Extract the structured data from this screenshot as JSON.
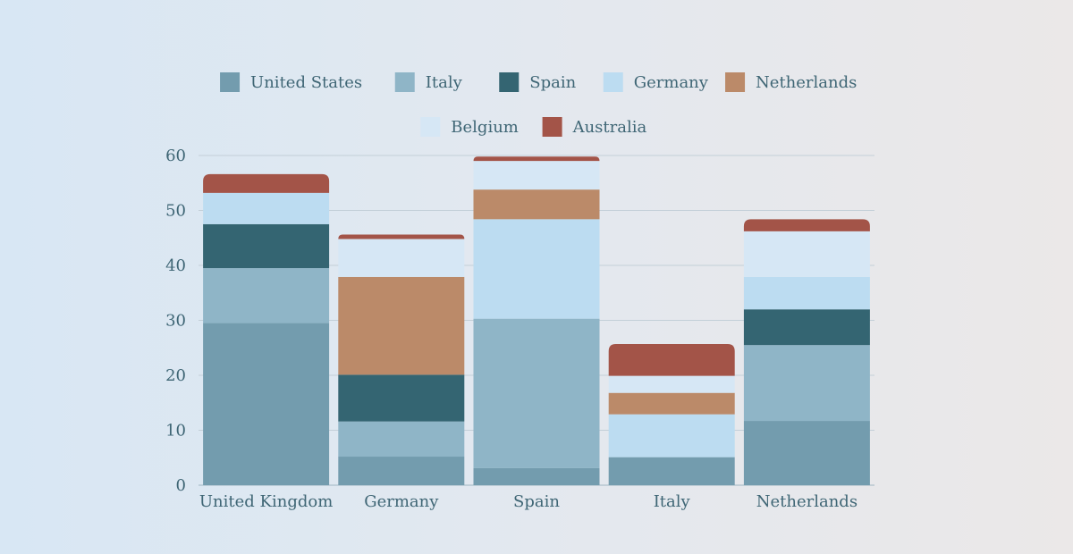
{
  "chart_data": {
    "type": "bar",
    "stacked": true,
    "categories": [
      "United Kingdom",
      "Germany",
      "Spain",
      "Italy",
      "Netherlands"
    ],
    "ylim": [
      0,
      60
    ],
    "yticks": [
      0,
      10,
      20,
      30,
      40,
      50,
      60
    ],
    "grid": true,
    "legend_position": "top",
    "series": [
      {
        "name": "United States",
        "color": "#739cae",
        "values": [
          29.5,
          5.2,
          3.1,
          5.1,
          11.7
        ]
      },
      {
        "name": "Italy",
        "color": "#8fb5c7",
        "values": [
          10.0,
          6.4,
          27.2,
          0,
          13.8
        ]
      },
      {
        "name": "Spain",
        "color": "#346572",
        "values": [
          8.0,
          8.5,
          0,
          0,
          6.5
        ]
      },
      {
        "name": "Germany",
        "color": "#bcdcf1",
        "values": [
          5.7,
          0,
          18.1,
          7.8,
          5.9
        ]
      },
      {
        "name": "Netherlands",
        "color": "#bb8a69",
        "values": [
          0,
          17.8,
          5.4,
          3.9,
          0
        ]
      },
      {
        "name": "Belgium",
        "color": "#d6e7f5",
        "values": [
          0,
          6.9,
          5.2,
          3.1,
          8.3
        ]
      },
      {
        "name": "Australia",
        "color": "#a35448",
        "values": [
          3.4,
          0.8,
          0.8,
          5.8,
          2.2
        ]
      }
    ]
  }
}
